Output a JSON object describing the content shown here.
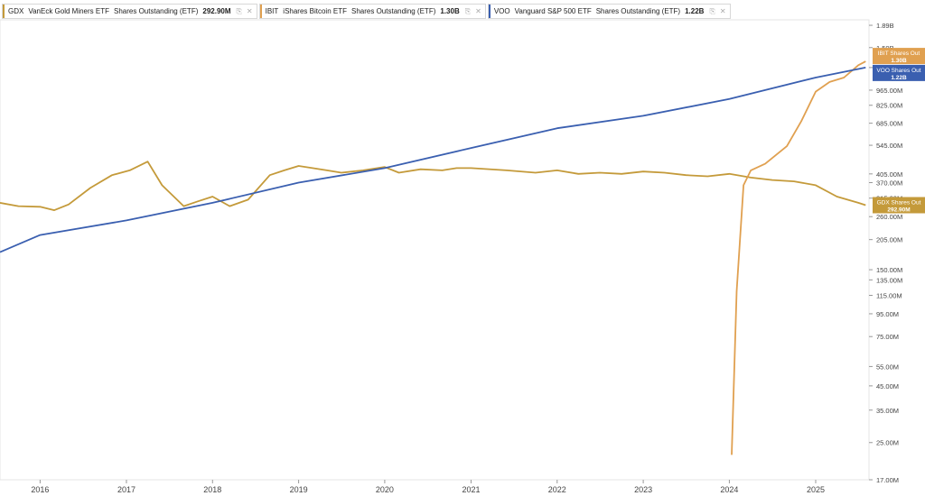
{
  "legend": [
    {
      "ticker": "GDX",
      "name": "VanEck Gold Miners ETF",
      "metric": "Shares Outstanding (ETF)",
      "value": "292.90M",
      "color": "#c49a3a"
    },
    {
      "ticker": "IBIT",
      "name": "iShares Bitcoin ETF",
      "metric": "Shares Outstanding (ETF)",
      "value": "1.30B",
      "color": "#e0a050"
    },
    {
      "ticker": "VOO",
      "name": "Vanguard S&P 500 ETF",
      "metric": "Shares Outstanding (ETF)",
      "value": "1.22B",
      "color": "#3a5fb0"
    }
  ],
  "icons": {
    "copy": "copy-icon",
    "close": "close-icon"
  },
  "chart_data": {
    "type": "line",
    "yscale": "log",
    "ylim": [
      17000000,
      2000000000
    ],
    "xlim": [
      "2015-07-15",
      "2025-08-15"
    ],
    "x_ticks": [
      "2016",
      "2017",
      "2018",
      "2019",
      "2020",
      "2021",
      "2022",
      "2023",
      "2024",
      "2025"
    ],
    "y_ticks": [
      "1.89B",
      "1.50B",
      "1.22B",
      "965.00M",
      "825.00M",
      "685.00M",
      "545.00M",
      "405.00M",
      "370.00M",
      "315.00M",
      "260.00M",
      "205.00M",
      "150.00M",
      "135.00M",
      "115.00M",
      "95.00M",
      "75.00M",
      "55.00M",
      "45.00M",
      "35.00M",
      "25.00M",
      "17.00M"
    ],
    "y_tick_values": [
      1890000000,
      1500000000,
      1220000000,
      965000000,
      825000000,
      685000000,
      545000000,
      405000000,
      370000000,
      315000000,
      260000000,
      205000000,
      150000000,
      135000000,
      115000000,
      95000000,
      75000000,
      55000000,
      45000000,
      35000000,
      25000000,
      17000000
    ],
    "series": [
      {
        "name": "GDX",
        "color": "#c49a3a",
        "label": [
          "GDX Shares Out",
          "292.90M"
        ],
        "points": [
          [
            "2015-07-15",
            300000000
          ],
          [
            "2015-10-01",
            290000000
          ],
          [
            "2016-01-01",
            288000000
          ],
          [
            "2016-03-01",
            278000000
          ],
          [
            "2016-05-01",
            295000000
          ],
          [
            "2016-08-01",
            350000000
          ],
          [
            "2016-11-01",
            400000000
          ],
          [
            "2017-01-15",
            420000000
          ],
          [
            "2017-04-01",
            460000000
          ],
          [
            "2017-06-01",
            360000000
          ],
          [
            "2017-09-01",
            290000000
          ],
          [
            "2017-11-01",
            305000000
          ],
          [
            "2018-01-01",
            320000000
          ],
          [
            "2018-03-15",
            290000000
          ],
          [
            "2018-06-01",
            310000000
          ],
          [
            "2018-09-01",
            400000000
          ],
          [
            "2018-11-01",
            420000000
          ],
          [
            "2019-01-01",
            440000000
          ],
          [
            "2019-03-01",
            430000000
          ],
          [
            "2019-05-01",
            420000000
          ],
          [
            "2019-07-01",
            410000000
          ],
          [
            "2019-10-01",
            420000000
          ],
          [
            "2020-01-01",
            435000000
          ],
          [
            "2020-03-01",
            410000000
          ],
          [
            "2020-06-01",
            425000000
          ],
          [
            "2020-09-01",
            420000000
          ],
          [
            "2020-11-01",
            430000000
          ],
          [
            "2021-01-01",
            430000000
          ],
          [
            "2021-06-01",
            420000000
          ],
          [
            "2021-10-01",
            410000000
          ],
          [
            "2022-01-01",
            420000000
          ],
          [
            "2022-04-01",
            405000000
          ],
          [
            "2022-07-01",
            410000000
          ],
          [
            "2022-10-01",
            405000000
          ],
          [
            "2023-01-01",
            415000000
          ],
          [
            "2023-04-01",
            410000000
          ],
          [
            "2023-07-01",
            400000000
          ],
          [
            "2023-10-01",
            395000000
          ],
          [
            "2024-01-01",
            405000000
          ],
          [
            "2024-04-01",
            390000000
          ],
          [
            "2024-07-01",
            380000000
          ],
          [
            "2024-10-01",
            375000000
          ],
          [
            "2025-01-01",
            360000000
          ],
          [
            "2025-04-01",
            320000000
          ],
          [
            "2025-07-01",
            300000000
          ],
          [
            "2025-08-01",
            292900000
          ]
        ]
      },
      {
        "name": "IBIT",
        "color": "#e0a050",
        "label": [
          "IBIT Shares Out",
          "1.30B"
        ],
        "points": [
          [
            "2024-01-11",
            22000000
          ],
          [
            "2024-02-01",
            120000000
          ],
          [
            "2024-03-01",
            360000000
          ],
          [
            "2024-04-01",
            420000000
          ],
          [
            "2024-06-01",
            450000000
          ],
          [
            "2024-09-01",
            540000000
          ],
          [
            "2024-11-01",
            700000000
          ],
          [
            "2025-01-01",
            950000000
          ],
          [
            "2025-03-01",
            1050000000
          ],
          [
            "2025-05-01",
            1100000000
          ],
          [
            "2025-07-01",
            1250000000
          ],
          [
            "2025-08-01",
            1300000000
          ]
        ]
      },
      {
        "name": "VOO",
        "color": "#3a5fb0",
        "label": [
          "VOO Shares Out",
          "1.22B"
        ],
        "points": [
          [
            "2015-07-15",
            180000000
          ],
          [
            "2016-01-01",
            215000000
          ],
          [
            "2017-01-01",
            250000000
          ],
          [
            "2018-01-01",
            300000000
          ],
          [
            "2019-01-01",
            370000000
          ],
          [
            "2020-01-01",
            430000000
          ],
          [
            "2021-01-01",
            530000000
          ],
          [
            "2022-01-01",
            650000000
          ],
          [
            "2023-01-01",
            740000000
          ],
          [
            "2024-01-01",
            880000000
          ],
          [
            "2025-01-01",
            1100000000
          ],
          [
            "2025-08-01",
            1220000000
          ]
        ]
      }
    ]
  }
}
